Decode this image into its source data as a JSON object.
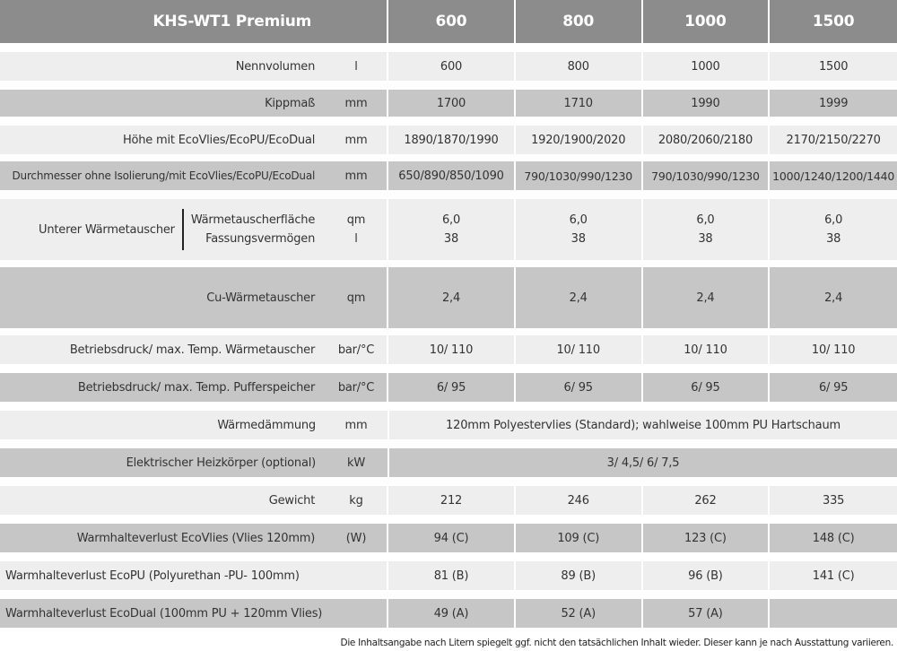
{
  "header": {
    "title": "KHS-WT1 Premium",
    "columns": [
      "600",
      "800",
      "1000",
      "1500"
    ]
  },
  "rows": [
    {
      "label": "Nennvolumen",
      "unit": "l",
      "values": [
        "600",
        "800",
        "1000",
        "1500"
      ]
    },
    {
      "label": "Kippmaß",
      "unit": "mm",
      "values": [
        "1700",
        "1710",
        "1990",
        "1999"
      ]
    },
    {
      "label": "Höhe mit EcoVlies/EcoPU/EcoDual",
      "unit": "mm",
      "values": [
        "1890/1870/1990",
        "1920/1900/2020",
        "2080/2060/2180",
        "2170/2150/2270"
      ]
    },
    {
      "label": "Durchmesser ohne Isolierung/mit EcoVlies/EcoPU/EcoDual",
      "unit": "mm",
      "values": [
        "650/890/850/1090",
        "790/1030/990/1230",
        "790/1030/990/1230",
        "1000/1240/1200/1440"
      ]
    },
    {
      "group": "Unterer Wärmetauscher",
      "label": "Wärmetauscherfläche",
      "label2": "Fassungsvermögen",
      "unit": "qm",
      "unit2": "l",
      "values": [
        "6,0",
        "6,0",
        "6,0",
        "6,0"
      ],
      "values2": [
        "38",
        "38",
        "38",
        "38"
      ]
    },
    {
      "label": "Cu-Wärmetauscher",
      "unit": "qm",
      "values": [
        "2,4",
        "2,4",
        "2,4",
        "2,4"
      ]
    },
    {
      "label": "Betriebsdruck/ max. Temp. Wärmetauscher",
      "unit": "bar/°C",
      "values": [
        "10/ 110",
        "10/ 110",
        "10/ 110",
        "10/ 110"
      ]
    },
    {
      "label": "Betriebsdruck/ max. Temp. Pufferspeicher",
      "unit": "bar/°C",
      "values": [
        "6/ 95",
        "6/ 95",
        "6/ 95",
        "6/ 95"
      ]
    },
    {
      "label": "Wärmedämmung",
      "unit": "mm",
      "span": "120mm Polyestervlies (Standard); wahlweise 100mm PU Hartschaum"
    },
    {
      "label": "Elektrischer Heizkörper (optional)",
      "unit": "kW",
      "span": "3/ 4,5/ 6/ 7,5"
    },
    {
      "label": "Gewicht",
      "unit": "kg",
      "values": [
        "212",
        "246",
        "262",
        "335"
      ]
    },
    {
      "label": "Warmhalteverlust EcoVlies (Vlies 120mm)",
      "unit": "(W)",
      "values": [
        "94 (C)",
        "109 (C)",
        "123 (C)",
        "148 (C)"
      ]
    },
    {
      "label": "Warmhalteverlust EcoPU (Polyurethan -PU- 100mm)",
      "values": [
        "81 (B)",
        "89 (B)",
        "96 (B)",
        "141 (C)"
      ]
    },
    {
      "label": "Warmhalteverlust EcoDual (100mm PU + 120mm Vlies)",
      "values": [
        "49 (A)",
        "52 (A)",
        "57 (A)",
        ""
      ]
    }
  ],
  "footnote": "Die Inhaltsangabe nach Litern spiegelt ggf. nicht den tatsächlichen Inhalt wieder. Dieser kann je nach Ausstattung variieren."
}
